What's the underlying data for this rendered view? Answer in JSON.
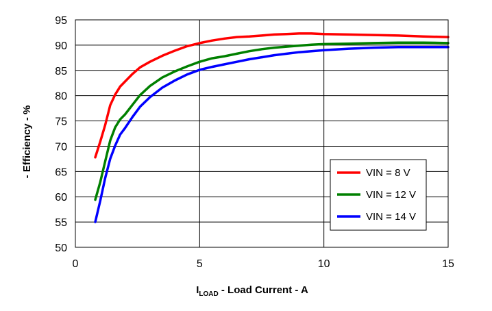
{
  "chart_data": {
    "type": "line",
    "title": "",
    "xlabel_main": "I",
    "xlabel_sub": "LOAD",
    "xlabel_rest": " - Load Current - A",
    "ylabel": "- Efficiency - %",
    "xlim": [
      0,
      15
    ],
    "ylim": [
      50,
      95
    ],
    "xticks": [
      "0",
      "5",
      "10",
      "15"
    ],
    "yticks": [
      "50",
      "55",
      "60",
      "65",
      "70",
      "75",
      "80",
      "85",
      "90",
      "95"
    ],
    "grid": true,
    "legend_position": "bottom-right",
    "series": [
      {
        "name": "VIN = 8 V",
        "color": "#ff0000",
        "x": [
          0.8,
          1.0,
          1.2,
          1.4,
          1.6,
          1.8,
          2.0,
          2.3,
          2.6,
          3.0,
          3.5,
          4.0,
          4.5,
          5.0,
          5.5,
          6.0,
          6.5,
          7.0,
          7.5,
          8.0,
          8.5,
          9.0,
          9.5,
          10.0,
          11.0,
          12.0,
          13.0,
          14.0,
          15.0
        ],
        "y": [
          67.8,
          70.9,
          74.2,
          78.1,
          80.2,
          81.8,
          82.8,
          84.3,
          85.6,
          86.7,
          87.9,
          88.9,
          89.8,
          90.4,
          90.9,
          91.3,
          91.6,
          91.7,
          91.9,
          92.1,
          92.2,
          92.3,
          92.3,
          92.2,
          92.1,
          92.0,
          91.9,
          91.7,
          91.6
        ]
      },
      {
        "name": "VIN = 12 V",
        "color": "#008000",
        "x": [
          0.8,
          1.0,
          1.2,
          1.4,
          1.6,
          1.8,
          2.0,
          2.3,
          2.6,
          3.0,
          3.5,
          4.0,
          4.5,
          5.0,
          5.5,
          6.0,
          6.5,
          7.0,
          7.5,
          8.0,
          8.5,
          9.0,
          9.5,
          10.0,
          11.0,
          12.0,
          13.0,
          14.0,
          15.0
        ],
        "y": [
          59.4,
          62.9,
          67.0,
          71.1,
          73.7,
          75.3,
          76.3,
          78.2,
          80.1,
          81.9,
          83.6,
          84.8,
          85.8,
          86.7,
          87.4,
          87.8,
          88.3,
          88.8,
          89.2,
          89.5,
          89.7,
          89.9,
          90.1,
          90.2,
          90.3,
          90.4,
          90.5,
          90.5,
          90.4
        ]
      },
      {
        "name": "VIN = 14 V",
        "color": "#0000ff",
        "x": [
          0.8,
          1.0,
          1.2,
          1.4,
          1.6,
          1.8,
          2.0,
          2.3,
          2.6,
          3.0,
          3.5,
          4.0,
          4.5,
          5.0,
          5.5,
          6.0,
          6.5,
          7.0,
          7.5,
          8.0,
          8.5,
          9.0,
          9.5,
          10.0,
          11.0,
          12.0,
          13.0,
          14.0,
          15.0
        ],
        "y": [
          55.0,
          59.2,
          63.7,
          67.5,
          70.1,
          72.3,
          73.6,
          75.8,
          77.8,
          79.7,
          81.6,
          83.0,
          84.2,
          85.1,
          85.7,
          86.2,
          86.7,
          87.2,
          87.6,
          88.0,
          88.3,
          88.6,
          88.8,
          89.0,
          89.3,
          89.5,
          89.6,
          89.6,
          89.6
        ]
      }
    ]
  }
}
